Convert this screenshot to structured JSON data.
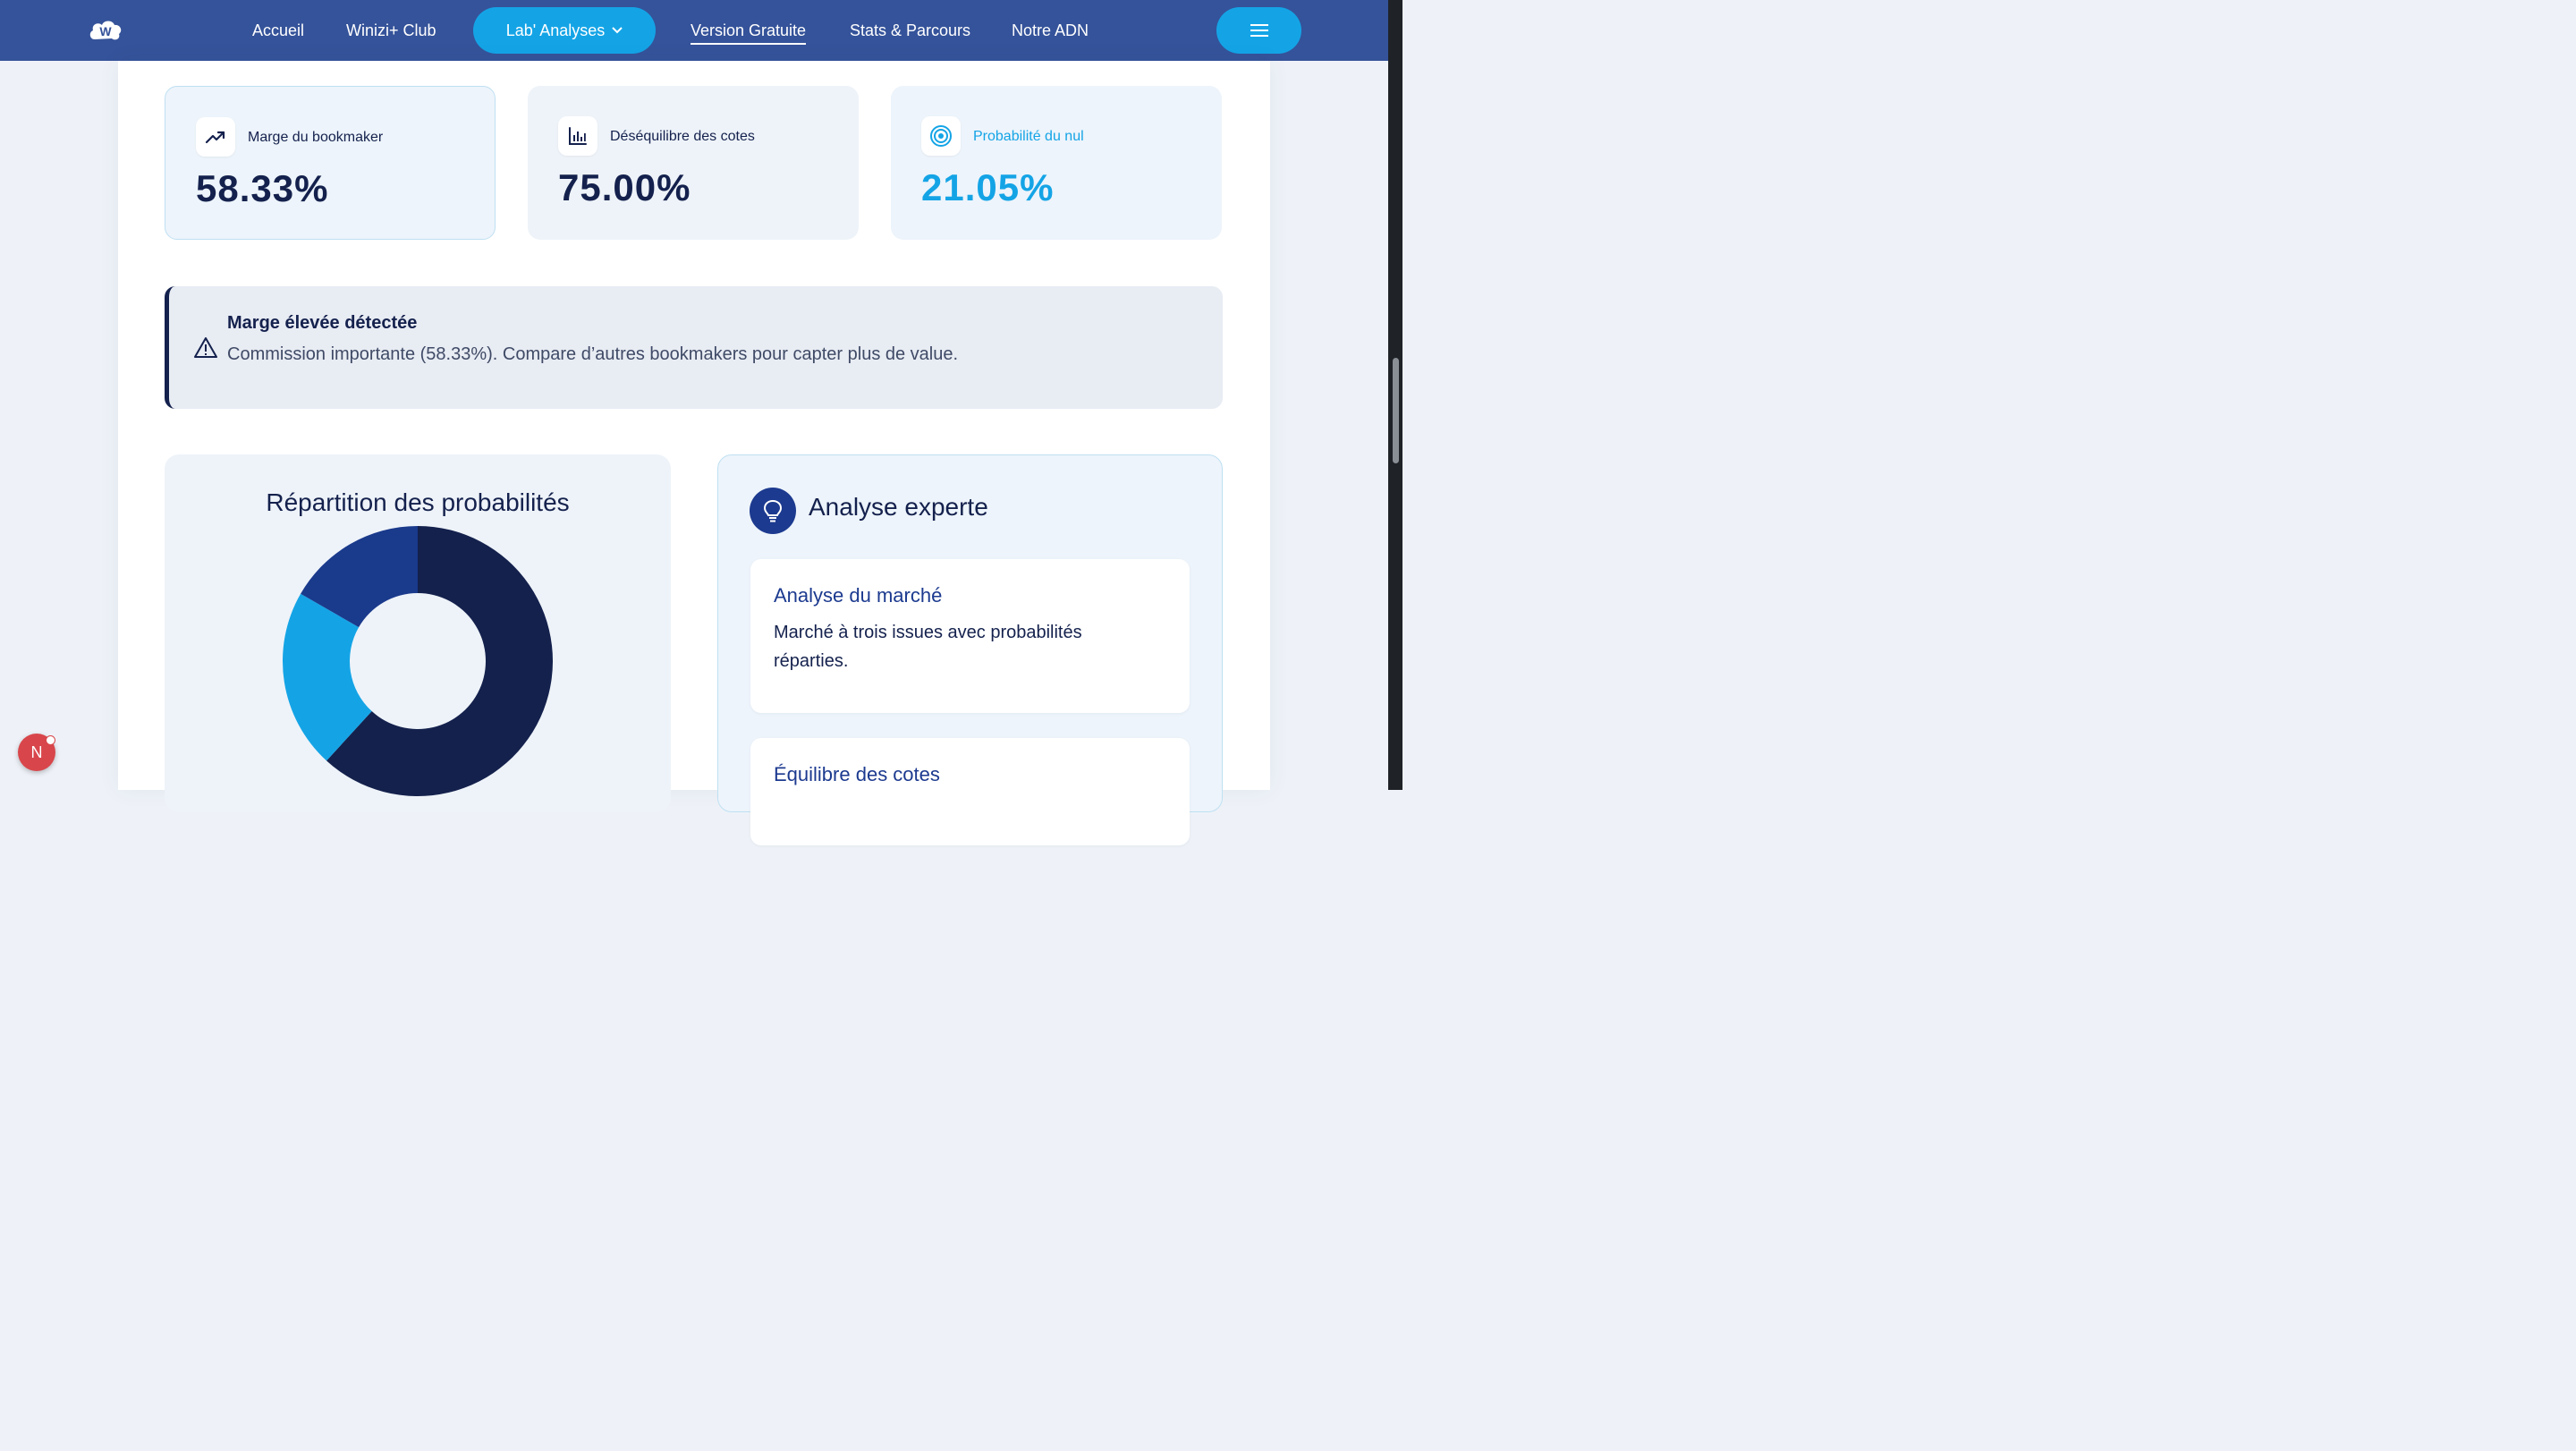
{
  "nav": {
    "links": [
      {
        "label": "Accueil"
      },
      {
        "label": "Winizi+ Club"
      },
      {
        "label": "Lab' Analyses"
      },
      {
        "label": "Version Gratuite"
      },
      {
        "label": "Stats & Parcours"
      },
      {
        "label": "Notre ADN"
      }
    ]
  },
  "stats": [
    {
      "label": "Marge du bookmaker",
      "value": "58.33%",
      "icon": "trending-up-icon"
    },
    {
      "label": "Déséquilibre des cotes",
      "value": "75.00%",
      "icon": "bar-chart-icon"
    },
    {
      "label": "Probabilité du nul",
      "value": "21.05%",
      "icon": "target-icon"
    }
  ],
  "alert": {
    "title": "Marge élevée détectée",
    "text": "Commission importante (58.33%). Compare d’autres bookmakers pour capter plus de value.",
    "icon": "warning-icon"
  },
  "chart": {
    "title": "Répartition des probabilités"
  },
  "chart_data": {
    "type": "pie",
    "values": [
      61.8,
      21.5,
      16.7
    ],
    "colors": [
      "#14214d",
      "#14a4e6",
      "#1a3a8c"
    ],
    "donut": true
  },
  "expert": {
    "title": "Analyse experte",
    "icon": "lightbulb-icon",
    "cards": [
      {
        "title": "Analyse du marché",
        "text": "Marché à trois issues avec probabilités réparties."
      },
      {
        "title": "Équilibre des cotes",
        "text": ""
      }
    ]
  },
  "badge": {
    "label": "N"
  },
  "colors": {
    "nav": "#35539a",
    "accent": "#14a4e6",
    "dark": "#14214d"
  }
}
